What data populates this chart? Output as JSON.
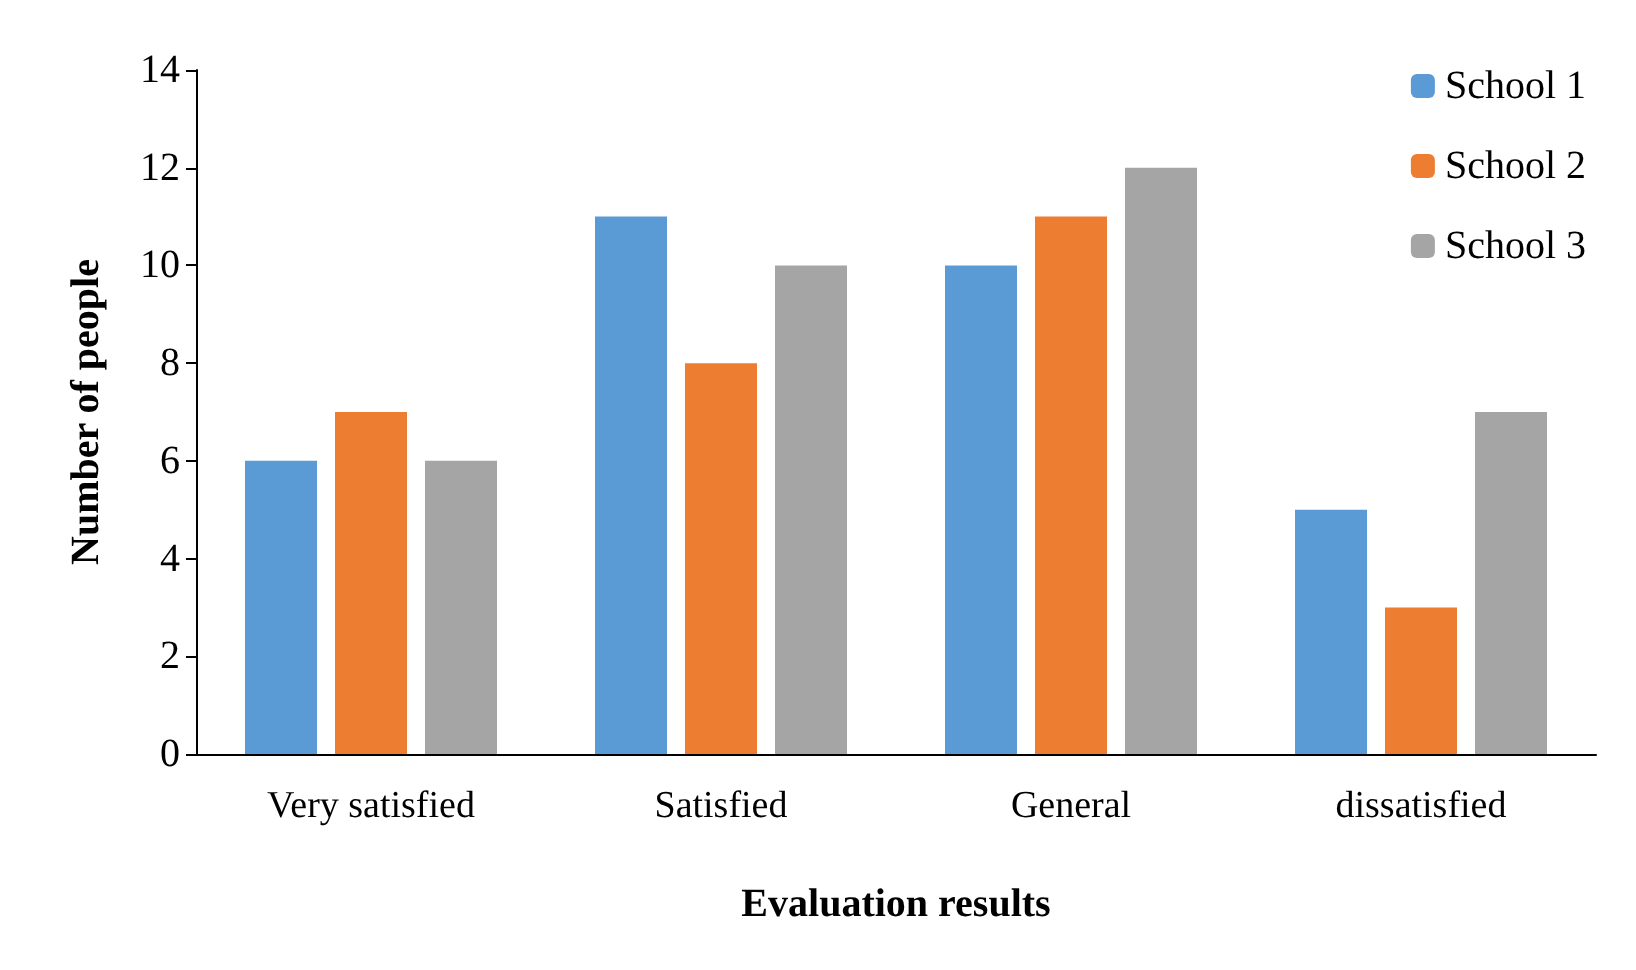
{
  "chart_data": {
    "type": "bar",
    "xlabel": "Evaluation results",
    "ylabel": "Number of people",
    "categories": [
      "Very satisfied",
      "Satisfied",
      "General",
      "dissatisfied"
    ],
    "series": [
      {
        "name": "School 1",
        "color": "#5b9bd5",
        "values": [
          6,
          11,
          10,
          5
        ]
      },
      {
        "name": "School 2",
        "color": "#ed7d31",
        "values": [
          7,
          8,
          11,
          3
        ]
      },
      {
        "name": "School 3",
        "color": "#a5a5a5",
        "values": [
          6,
          10,
          12,
          7
        ]
      }
    ],
    "ylim": [
      0,
      14
    ],
    "yticks": [
      0,
      2,
      4,
      6,
      8,
      10,
      12,
      14
    ],
    "grid": false,
    "legend": "top right"
  }
}
